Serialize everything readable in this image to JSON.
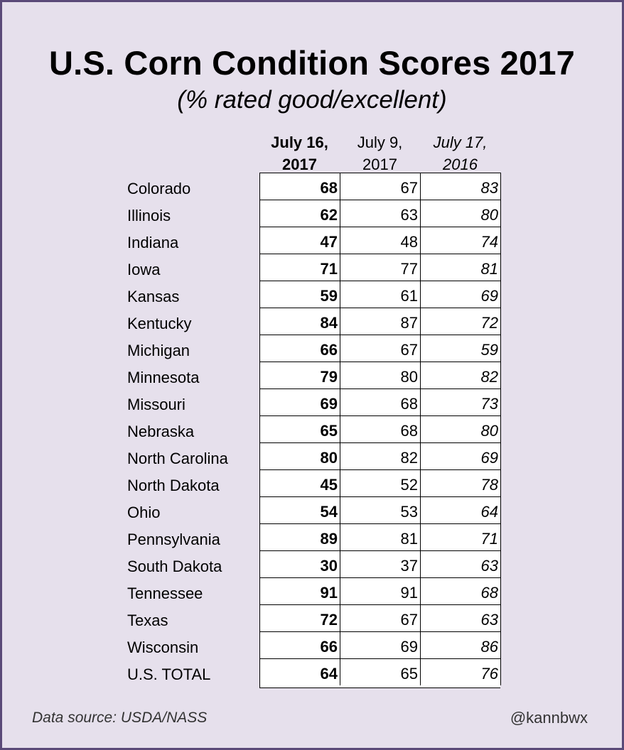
{
  "chart_data": {
    "type": "table",
    "title": "U.S. Corn Condition Scores 2017",
    "subtitle": "(% rated good/excellent)",
    "columns": [
      {
        "line1": "July 16,",
        "line2": "2017",
        "style": "bold"
      },
      {
        "line1": "July 9,",
        "line2": "2017",
        "style": "normal"
      },
      {
        "line1": "July 17,",
        "line2": "2016",
        "style": "italic"
      }
    ],
    "rows": [
      {
        "state": "Colorado",
        "values": [
          68,
          67,
          83
        ]
      },
      {
        "state": "Illinois",
        "values": [
          62,
          63,
          80
        ]
      },
      {
        "state": "Indiana",
        "values": [
          47,
          48,
          74
        ]
      },
      {
        "state": "Iowa",
        "values": [
          71,
          77,
          81
        ]
      },
      {
        "state": "Kansas",
        "values": [
          59,
          61,
          69
        ]
      },
      {
        "state": "Kentucky",
        "values": [
          84,
          87,
          72
        ]
      },
      {
        "state": "Michigan",
        "values": [
          66,
          67,
          59
        ]
      },
      {
        "state": "Minnesota",
        "values": [
          79,
          80,
          82
        ]
      },
      {
        "state": "Missouri",
        "values": [
          69,
          68,
          73
        ]
      },
      {
        "state": "Nebraska",
        "values": [
          65,
          68,
          80
        ]
      },
      {
        "state": "North Carolina",
        "values": [
          80,
          82,
          69
        ]
      },
      {
        "state": "North Dakota",
        "values": [
          45,
          52,
          78
        ]
      },
      {
        "state": "Ohio",
        "values": [
          54,
          53,
          64
        ]
      },
      {
        "state": "Pennsylvania",
        "values": [
          89,
          81,
          71
        ]
      },
      {
        "state": "South Dakota",
        "values": [
          30,
          37,
          63
        ]
      },
      {
        "state": "Tennessee",
        "values": [
          91,
          91,
          68
        ]
      },
      {
        "state": "Texas",
        "values": [
          72,
          67,
          63
        ]
      },
      {
        "state": "Wisconsin",
        "values": [
          66,
          69,
          86
        ]
      },
      {
        "state": "U.S. TOTAL",
        "values": [
          64,
          65,
          76
        ]
      }
    ]
  },
  "footer": {
    "source": "Data source: USDA/NASS",
    "handle": "@kannbwx"
  },
  "colors": {
    "background": "#e6e0ec",
    "border": "#5a4a78"
  }
}
